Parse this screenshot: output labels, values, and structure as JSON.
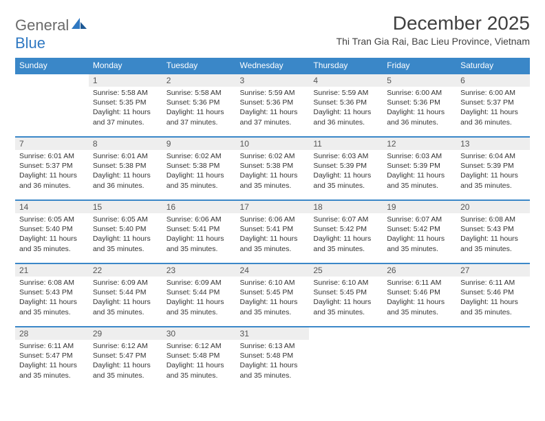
{
  "brand": {
    "line1": "General",
    "line2": "Blue",
    "text_color": "#6a6a6a",
    "accent_color": "#2f78c2"
  },
  "title": "December 2025",
  "location": "Thi Tran Gia Rai, Bac Lieu Province, Vietnam",
  "header_bg": "#3a87c8",
  "header_fg": "#ffffff",
  "daynum_bg": "#eeeeee",
  "row_divider_color": "#3a87c8",
  "font_family": "Arial",
  "day_headers": [
    "Sunday",
    "Monday",
    "Tuesday",
    "Wednesday",
    "Thursday",
    "Friday",
    "Saturday"
  ],
  "weeks": [
    [
      null,
      {
        "n": "1",
        "sr": "5:58 AM",
        "ss": "5:35 PM",
        "d": "11 hours and 37 minutes."
      },
      {
        "n": "2",
        "sr": "5:58 AM",
        "ss": "5:36 PM",
        "d": "11 hours and 37 minutes."
      },
      {
        "n": "3",
        "sr": "5:59 AM",
        "ss": "5:36 PM",
        "d": "11 hours and 37 minutes."
      },
      {
        "n": "4",
        "sr": "5:59 AM",
        "ss": "5:36 PM",
        "d": "11 hours and 36 minutes."
      },
      {
        "n": "5",
        "sr": "6:00 AM",
        "ss": "5:36 PM",
        "d": "11 hours and 36 minutes."
      },
      {
        "n": "6",
        "sr": "6:00 AM",
        "ss": "5:37 PM",
        "d": "11 hours and 36 minutes."
      }
    ],
    [
      {
        "n": "7",
        "sr": "6:01 AM",
        "ss": "5:37 PM",
        "d": "11 hours and 36 minutes."
      },
      {
        "n": "8",
        "sr": "6:01 AM",
        "ss": "5:38 PM",
        "d": "11 hours and 36 minutes."
      },
      {
        "n": "9",
        "sr": "6:02 AM",
        "ss": "5:38 PM",
        "d": "11 hours and 35 minutes."
      },
      {
        "n": "10",
        "sr": "6:02 AM",
        "ss": "5:38 PM",
        "d": "11 hours and 35 minutes."
      },
      {
        "n": "11",
        "sr": "6:03 AM",
        "ss": "5:39 PM",
        "d": "11 hours and 35 minutes."
      },
      {
        "n": "12",
        "sr": "6:03 AM",
        "ss": "5:39 PM",
        "d": "11 hours and 35 minutes."
      },
      {
        "n": "13",
        "sr": "6:04 AM",
        "ss": "5:39 PM",
        "d": "11 hours and 35 minutes."
      }
    ],
    [
      {
        "n": "14",
        "sr": "6:05 AM",
        "ss": "5:40 PM",
        "d": "11 hours and 35 minutes."
      },
      {
        "n": "15",
        "sr": "6:05 AM",
        "ss": "5:40 PM",
        "d": "11 hours and 35 minutes."
      },
      {
        "n": "16",
        "sr": "6:06 AM",
        "ss": "5:41 PM",
        "d": "11 hours and 35 minutes."
      },
      {
        "n": "17",
        "sr": "6:06 AM",
        "ss": "5:41 PM",
        "d": "11 hours and 35 minutes."
      },
      {
        "n": "18",
        "sr": "6:07 AM",
        "ss": "5:42 PM",
        "d": "11 hours and 35 minutes."
      },
      {
        "n": "19",
        "sr": "6:07 AM",
        "ss": "5:42 PM",
        "d": "11 hours and 35 minutes."
      },
      {
        "n": "20",
        "sr": "6:08 AM",
        "ss": "5:43 PM",
        "d": "11 hours and 35 minutes."
      }
    ],
    [
      {
        "n": "21",
        "sr": "6:08 AM",
        "ss": "5:43 PM",
        "d": "11 hours and 35 minutes."
      },
      {
        "n": "22",
        "sr": "6:09 AM",
        "ss": "5:44 PM",
        "d": "11 hours and 35 minutes."
      },
      {
        "n": "23",
        "sr": "6:09 AM",
        "ss": "5:44 PM",
        "d": "11 hours and 35 minutes."
      },
      {
        "n": "24",
        "sr": "6:10 AM",
        "ss": "5:45 PM",
        "d": "11 hours and 35 minutes."
      },
      {
        "n": "25",
        "sr": "6:10 AM",
        "ss": "5:45 PM",
        "d": "11 hours and 35 minutes."
      },
      {
        "n": "26",
        "sr": "6:11 AM",
        "ss": "5:46 PM",
        "d": "11 hours and 35 minutes."
      },
      {
        "n": "27",
        "sr": "6:11 AM",
        "ss": "5:46 PM",
        "d": "11 hours and 35 minutes."
      }
    ],
    [
      {
        "n": "28",
        "sr": "6:11 AM",
        "ss": "5:47 PM",
        "d": "11 hours and 35 minutes."
      },
      {
        "n": "29",
        "sr": "6:12 AM",
        "ss": "5:47 PM",
        "d": "11 hours and 35 minutes."
      },
      {
        "n": "30",
        "sr": "6:12 AM",
        "ss": "5:48 PM",
        "d": "11 hours and 35 minutes."
      },
      {
        "n": "31",
        "sr": "6:13 AM",
        "ss": "5:48 PM",
        "d": "11 hours and 35 minutes."
      },
      null,
      null,
      null
    ]
  ],
  "labels": {
    "sunrise": "Sunrise:",
    "sunset": "Sunset:",
    "daylight": "Daylight:"
  }
}
